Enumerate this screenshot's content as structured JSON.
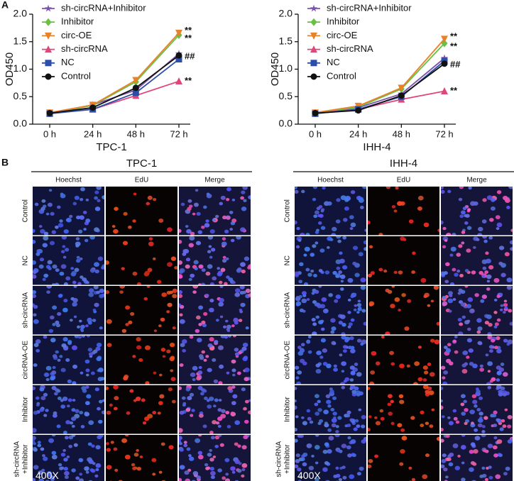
{
  "panel_labels": [
    "A",
    "B"
  ],
  "chart_data": [
    {
      "type": "line",
      "x_label": "TPC-1",
      "y_label": "OD450",
      "categories": [
        "0 h",
        "24 h",
        "48 h",
        "72 h"
      ],
      "ylim": [
        0,
        2
      ],
      "yticks": [
        {
          "value": 0,
          "label": "0.0"
        },
        0.5,
        {
          "value": 1,
          "label": "1.0"
        },
        1.5,
        {
          "value": 2,
          "label": "2.0"
        }
      ],
      "series": [
        {
          "name": "sh-circRNA+Inhibitor",
          "color": "#7b52ab",
          "marker": "star",
          "values": [
            0.2,
            0.35,
            0.62,
            1.28
          ]
        },
        {
          "name": "Inhibitor",
          "color": "#6abf45",
          "marker": "diamond",
          "values": [
            0.2,
            0.34,
            0.77,
            1.62
          ]
        },
        {
          "name": "circ-OE",
          "color": "#e8822a",
          "marker": "triangle-down",
          "values": [
            0.21,
            0.35,
            0.8,
            1.66
          ]
        },
        {
          "name": "sh-circRNA",
          "color": "#e0457b",
          "marker": "triangle",
          "values": [
            0.2,
            0.27,
            0.52,
            0.78
          ]
        },
        {
          "name": "NC",
          "color": "#2b4fa8",
          "marker": "square",
          "values": [
            0.19,
            0.27,
            0.57,
            1.18
          ]
        },
        {
          "name": "Control",
          "color": "#111111",
          "marker": "circle",
          "values": [
            0.2,
            0.3,
            0.66,
            1.25
          ]
        }
      ],
      "annotations": [
        "**",
        "**",
        "##",
        "**"
      ]
    },
    {
      "type": "line",
      "x_label": "IHH-4",
      "y_label": "OD450",
      "categories": [
        "0 h",
        "24 h",
        "48 h",
        "72 h"
      ],
      "ylim": [
        0,
        2
      ],
      "yticks": [
        {
          "value": 0,
          "label": "0.0"
        },
        0.5,
        {
          "value": 1,
          "label": "1.0"
        },
        1.5,
        {
          "value": 2,
          "label": "2.0"
        }
      ],
      "series": [
        {
          "name": "sh-circRNA+Inhibitor",
          "color": "#7b52ab",
          "marker": "star",
          "values": [
            0.2,
            0.3,
            0.55,
            1.2
          ]
        },
        {
          "name": "Inhibitor",
          "color": "#6abf45",
          "marker": "diamond",
          "values": [
            0.2,
            0.31,
            0.64,
            1.47
          ]
        },
        {
          "name": "circ-OE",
          "color": "#e8822a",
          "marker": "triangle-down",
          "values": [
            0.21,
            0.33,
            0.66,
            1.55
          ]
        },
        {
          "name": "sh-circRNA",
          "color": "#e0457b",
          "marker": "triangle",
          "values": [
            0.2,
            0.27,
            0.45,
            0.6
          ]
        },
        {
          "name": "NC",
          "color": "#2b4fa8",
          "marker": "square",
          "values": [
            0.19,
            0.27,
            0.5,
            1.15
          ]
        },
        {
          "name": "Control",
          "color": "#111111",
          "marker": "circle",
          "values": [
            0.2,
            0.25,
            0.52,
            1.1
          ]
        }
      ],
      "annotations": [
        "**",
        "**",
        "##",
        "**"
      ]
    }
  ],
  "microscopy": {
    "groups": [
      "TPC-1",
      "IHH-4"
    ],
    "columns": [
      "Hoechst",
      "EdU",
      "Merge"
    ],
    "rows": [
      "Control",
      "NC",
      "sh-circRNA",
      "circRNA-OE",
      "Inhibitor",
      [
        "sh-circRNA",
        "+Inhibitor"
      ]
    ],
    "magnification": "400X"
  }
}
